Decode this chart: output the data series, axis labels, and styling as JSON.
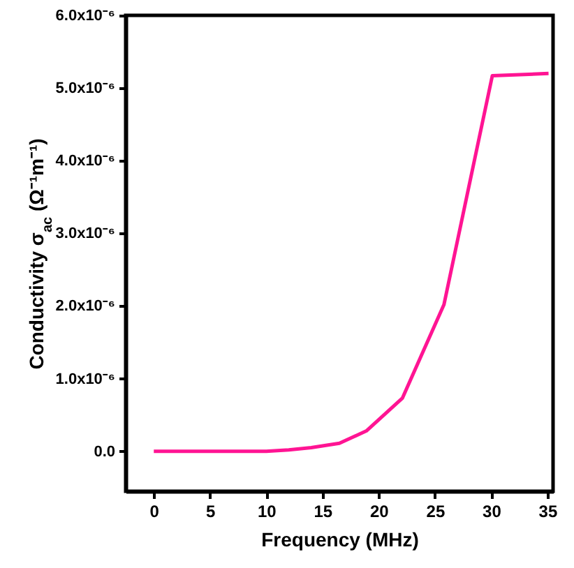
{
  "chart_data": {
    "type": "line",
    "xlabel": "Frequency (MHz)",
    "ylabel": "Conductivity σ$_{ac}$ (Ω⁻¹m⁻¹)",
    "x": [
      0,
      5,
      10,
      12,
      14,
      16.5,
      18.9,
      22.1,
      25.8,
      30.1,
      35.1
    ],
    "series": [
      {
        "color": "#ff1493",
        "values": [
          0,
          0,
          0,
          2e-08,
          5e-08,
          1.1e-07,
          2.8e-07,
          7.3e-07,
          2.02e-06,
          5.17e-06,
          5.2e-06
        ]
      }
    ],
    "xlim": [
      -2.5,
      35.5
    ],
    "xticks": [
      0,
      5,
      10,
      15,
      20,
      25,
      30,
      35
    ],
    "ylim": [
      -5.5e-07,
      6e-06
    ],
    "yticks": [
      {
        "value": 0,
        "label": "0.0"
      },
      {
        "value": 1e-06,
        "label": "1.0x10⁻⁶"
      },
      {
        "value": 2e-06,
        "label": "2.0x10⁻⁶"
      },
      {
        "value": 3e-06,
        "label": "3.0x10⁻⁶"
      },
      {
        "value": 4e-06,
        "label": "4.0x10⁻⁶"
      },
      {
        "value": 5e-06,
        "label": "5.0x10⁻⁶"
      },
      {
        "value": 6e-06,
        "label": "6.0x10⁻⁶"
      }
    ],
    "grid": false,
    "marker": "none",
    "line_style": "solid"
  }
}
